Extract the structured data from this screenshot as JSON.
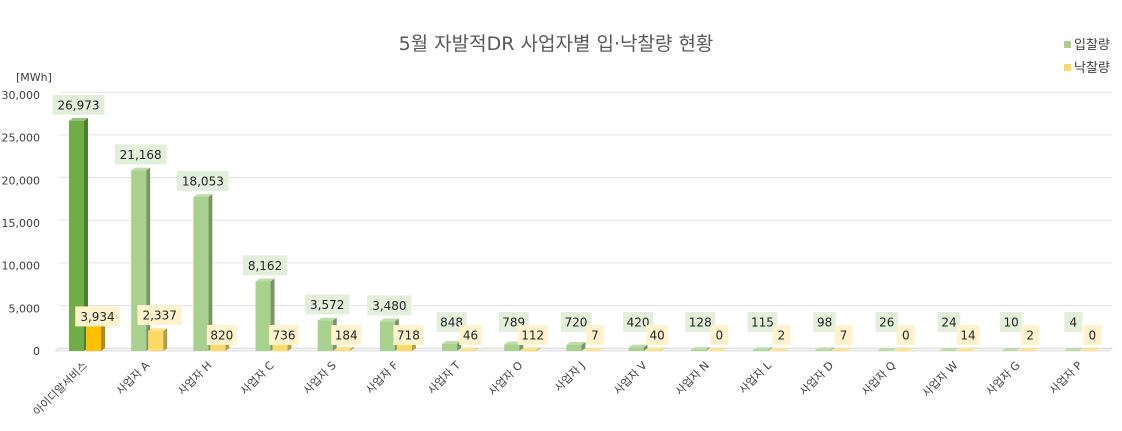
{
  "chart_data": {
    "type": "bar",
    "title": "5월 자발적DR 사업자별 입·낙찰량 현황",
    "ylabel": "[MWh]",
    "xlabel": "",
    "ylim": [
      0,
      30000
    ],
    "yticks": [
      0,
      5000,
      10000,
      15000,
      20000,
      25000,
      30000
    ],
    "ytick_labels": [
      "0",
      "5,000",
      "10,000",
      "15,000",
      "20,000",
      "25,000",
      "30,000"
    ],
    "grid": true,
    "legend_position": "top-right",
    "categories": [
      "아이디알서비스",
      "사업자 A",
      "사업자 H",
      "사업자 C",
      "사업자 S",
      "사업자 F",
      "사업자 T",
      "사업자 O",
      "사업자 J",
      "사업자 V",
      "사업자 N",
      "사업자 L",
      "사업자 D",
      "사업자 Q",
      "사업자 W",
      "사업자 G",
      "사업자 P"
    ],
    "series": [
      {
        "name": "입찰량",
        "color": "#a9d18e",
        "highlight_color": "#70ad47",
        "values": [
          26973,
          21168,
          18053,
          8162,
          3572,
          3480,
          848,
          789,
          720,
          420,
          128,
          115,
          98,
          26,
          24,
          10,
          4
        ],
        "labels": [
          "26,973",
          "21,168",
          "18,053",
          "8,162",
          "3,572",
          "3,480",
          "848",
          "789",
          "720",
          "420",
          "128",
          "115",
          "98",
          "26",
          "24",
          "10",
          "4"
        ]
      },
      {
        "name": "낙찰량",
        "color": "#ffd966",
        "highlight_color": "#ffc000",
        "values": [
          3934,
          2337,
          820,
          736,
          184,
          718,
          46,
          112,
          7,
          40,
          0,
          2,
          7,
          0,
          14,
          2,
          0
        ],
        "labels": [
          "3,934",
          "2,337",
          "820",
          "736",
          "184",
          "718",
          "46",
          "112",
          "7",
          "40",
          "0",
          "2",
          "7",
          "0",
          "14",
          "2",
          "0"
        ]
      }
    ],
    "highlight_category_index": 0
  }
}
